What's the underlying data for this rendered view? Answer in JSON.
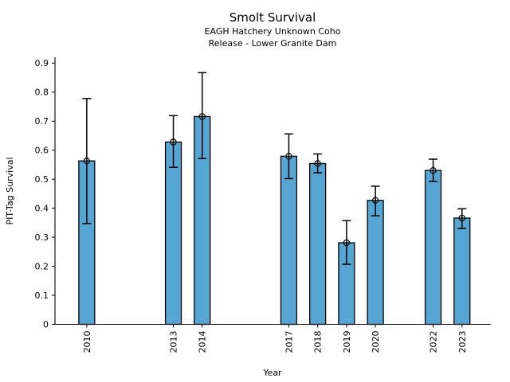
{
  "chart_data": {
    "type": "bar",
    "title": "Smolt Survival",
    "subtitle_line1": "EAGH Hatchery Unknown Coho",
    "subtitle_line2": "Release - Lower Granite Dam",
    "xlabel": "Year",
    "ylabel": "PIT-Tag Survival",
    "categories": [
      2010,
      2013,
      2014,
      2017,
      2018,
      2019,
      2020,
      2022,
      2023
    ],
    "values": [
      0.563,
      0.628,
      0.716,
      0.579,
      0.554,
      0.281,
      0.427,
      0.53,
      0.366
    ],
    "error_low": [
      0.347,
      0.541,
      0.571,
      0.502,
      0.522,
      0.207,
      0.374,
      0.492,
      0.33
    ],
    "error_high": [
      0.778,
      0.719,
      0.867,
      0.656,
      0.587,
      0.357,
      0.476,
      0.569,
      0.398
    ],
    "yticks": [
      0,
      0.1,
      0.2,
      0.3,
      0.4,
      0.5,
      0.6,
      0.7,
      0.8,
      0.9
    ],
    "ylim": [
      0,
      0.92
    ],
    "xlim": [
      2008.9,
      2024.0
    ],
    "bar_width_years": 0.55,
    "bar_color": "#56a5d2",
    "bar_edge_color": "#000000",
    "error_color": "#000000",
    "marker": "open-circle",
    "marker_color": "#000000",
    "grid": false,
    "legend": null
  }
}
